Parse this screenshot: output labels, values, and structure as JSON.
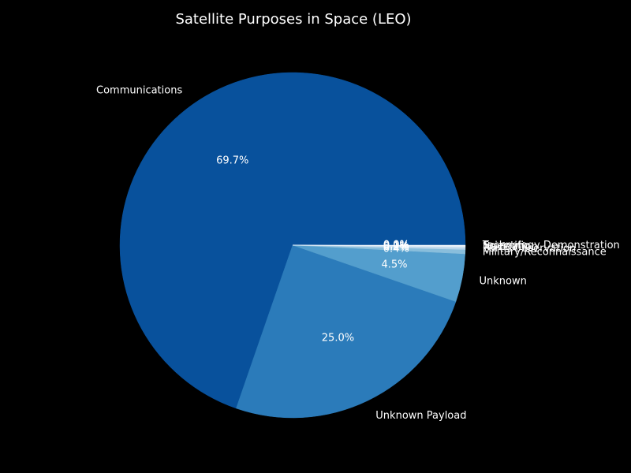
{
  "chart_data": {
    "type": "pie",
    "title": "Satellite Purposes in Space (LEO)",
    "start_angle_deg": 0,
    "direction": "counterclockwise",
    "slices": [
      {
        "label": "Communications",
        "value": 69.7,
        "pct_label": "69.7%",
        "color": "#08519c"
      },
      {
        "label": "Unknown Payload",
        "value": 25.0,
        "pct_label": "25.0%",
        "color": "#2b7bba"
      },
      {
        "label": "Unknown",
        "value": 4.5,
        "pct_label": "4.5%",
        "color": "#539ecd"
      },
      {
        "label": "Military/Reconnaissance",
        "value": 0.4,
        "pct_label": "0.4%",
        "color": "#89bedc"
      },
      {
        "label": "Earth Observation",
        "value": 0.2,
        "pct_label": "0.2%",
        "color": "#bad6eb"
      },
      {
        "label": "Navigation",
        "value": 0.1,
        "pct_label": "0.1%",
        "color": "#dbe9f6"
      },
      {
        "label": "Scientific",
        "value": 0.05,
        "pct_label": "0.0%",
        "color": "#eef5fc"
      },
      {
        "label": "Technology Demonstration",
        "value": 0.05,
        "pct_label": "0.0%",
        "color": "#f7fbff"
      }
    ]
  }
}
